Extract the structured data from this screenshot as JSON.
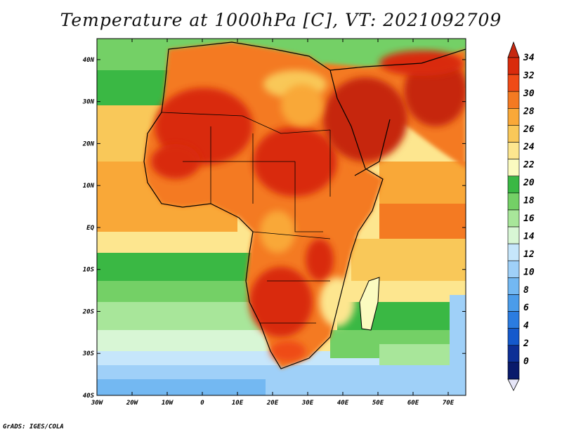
{
  "title": "Temperature at 1000hPa [C], VT: 2021092709",
  "footer": "GrADS: IGES/COLA",
  "map": {
    "lon_range": [
      -30,
      75
    ],
    "lat_range": [
      -40,
      45
    ],
    "x_ticks": [
      "30W",
      "20W",
      "10W",
      "0",
      "10E",
      "20E",
      "30E",
      "40E",
      "50E",
      "60E",
      "70E"
    ],
    "y_ticks": [
      "40N",
      "30N",
      "20N",
      "10N",
      "EQ",
      "10S",
      "20S",
      "30S",
      "40S"
    ],
    "variable": "Temperature",
    "level": "1000hPa",
    "units": "C"
  },
  "colorbar": {
    "levels": [
      "34",
      "32",
      "30",
      "28",
      "26",
      "24",
      "22",
      "20",
      "18",
      "16",
      "14",
      "12",
      "10",
      "8",
      "6",
      "4",
      "2",
      "0"
    ],
    "colors": [
      "#d92b0c",
      "#ef4b17",
      "#f47a22",
      "#f9a838",
      "#f9c859",
      "#fde68f",
      "#fbfbc0",
      "#3ab844",
      "#74d066",
      "#a8e69a",
      "#d8f6d5",
      "#c6e6fb",
      "#9fd0f8",
      "#73b8f2",
      "#4b9cea",
      "#2b7ce0",
      "#1459cc",
      "#0d2f96",
      "#091a6b"
    ],
    "top_color": "#c62810",
    "bottom_color": "#e6e6f8"
  }
}
